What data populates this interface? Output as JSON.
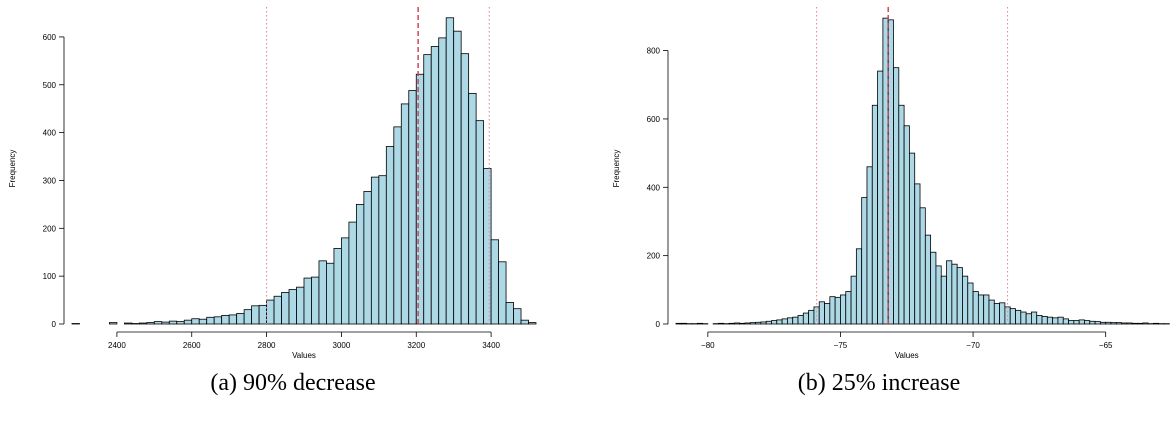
{
  "captions": [
    "(a) 90% decrease",
    "(b) 25% increase"
  ],
  "colors": {
    "bar_fill": "#ADD8E6",
    "bar_stroke": "#000000",
    "mean_line": "#CD3A4E",
    "interval_line": "#E58AA2",
    "axis": "#000000"
  },
  "chart_data": [
    {
      "type": "bar",
      "title": "",
      "xlabel": "Values",
      "ylabel": "Frequency",
      "xlim": [
        2280,
        3520
      ],
      "ylim": [
        0,
        650
      ],
      "xticks": [
        2400,
        2600,
        2800,
        3000,
        3200,
        3400
      ],
      "yticks": [
        0,
        100,
        200,
        300,
        400,
        500,
        600
      ],
      "bin_width": 20,
      "bin_start": 2280,
      "values": [
        1,
        0,
        0,
        0,
        0,
        3,
        0,
        2,
        1,
        2,
        3,
        5,
        4,
        6,
        5,
        8,
        11,
        10,
        14,
        15,
        18,
        19,
        22,
        30,
        38,
        39,
        50,
        58,
        66,
        72,
        77,
        96,
        98,
        132,
        127,
        158,
        180,
        213,
        250,
        277,
        307,
        310,
        371,
        412,
        460,
        488,
        522,
        563,
        580,
        598,
        640,
        612,
        565,
        482,
        425,
        325,
        176,
        130,
        45,
        32,
        8,
        3
      ],
      "vlines": [
        {
          "x": 2800,
          "style": "dotted",
          "role": "interval"
        },
        {
          "x": 3205,
          "style": "dashed",
          "role": "mean"
        },
        {
          "x": 3395,
          "style": "dotted",
          "role": "interval"
        }
      ]
    },
    {
      "type": "bar",
      "title": "",
      "xlabel": "Values",
      "ylabel": "Frequency",
      "xlim": [
        -81.2,
        -62.5
      ],
      "ylim": [
        0,
        910
      ],
      "xticks": [
        -80,
        -75,
        -70,
        -65
      ],
      "yticks": [
        0,
        200,
        400,
        600,
        800
      ],
      "bin_width": 0.2,
      "bin_start": -81.2,
      "values": [
        2,
        2,
        1,
        1,
        2,
        1,
        0,
        1,
        2,
        1,
        2,
        3,
        2,
        3,
        4,
        5,
        6,
        8,
        10,
        12,
        15,
        18,
        20,
        25,
        32,
        40,
        50,
        65,
        60,
        80,
        78,
        85,
        95,
        140,
        220,
        370,
        460,
        640,
        740,
        895,
        890,
        750,
        640,
        580,
        500,
        410,
        340,
        260,
        210,
        170,
        140,
        185,
        175,
        165,
        140,
        120,
        95,
        85,
        85,
        70,
        60,
        62,
        50,
        45,
        40,
        35,
        30,
        35,
        25,
        22,
        20,
        18,
        20,
        15,
        10,
        10,
        12,
        10,
        8,
        7,
        5,
        5,
        4,
        4,
        3,
        3,
        2,
        2,
        3,
        1,
        2,
        1,
        1
      ],
      "vlines": [
        {
          "x": -75.9,
          "style": "dotted",
          "role": "interval"
        },
        {
          "x": -73.2,
          "style": "dashed",
          "role": "mean"
        },
        {
          "x": -68.7,
          "style": "dotted",
          "role": "interval"
        }
      ]
    }
  ]
}
